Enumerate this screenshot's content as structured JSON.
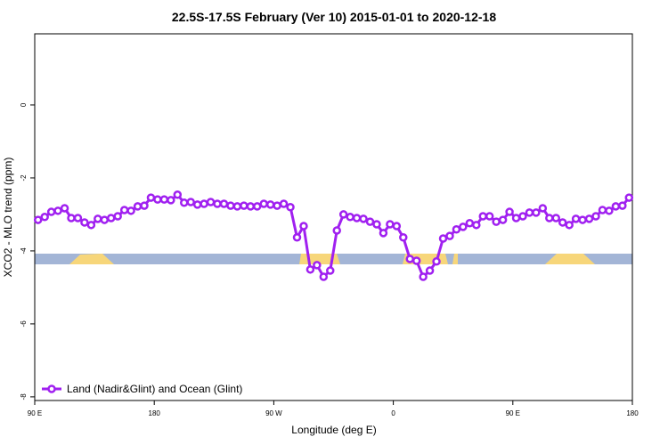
{
  "chart_data": {
    "type": "line",
    "title": "22.5S-17.5S February (Ver 10)   2015-01-01 to 2020-12-18",
    "x_label": "Longitude (deg E)",
    "y_label": "XCO2 - MLO trend (ppm)",
    "xlim": [
      90,
      540
    ],
    "ylim": [
      -8.1,
      1.95
    ],
    "xticks": [
      {
        "value": 90,
        "label": "90 E"
      },
      {
        "value": 180,
        "label": "180"
      },
      {
        "value": 270,
        "label": "90 W"
      },
      {
        "value": 360,
        "label": "0"
      },
      {
        "value": 450,
        "label": "90 E"
      },
      {
        "value": 540,
        "label": "180"
      }
    ],
    "yticks": [
      0,
      -2,
      -4,
      -6,
      -8
    ],
    "x": [
      92.5,
      97.5,
      102.5,
      107.5,
      112.5,
      117.5,
      122.5,
      127.5,
      132.5,
      137.5,
      142.5,
      147.5,
      152.5,
      157.5,
      162.5,
      167.5,
      172.5,
      177.5,
      182.5,
      187.5,
      192.5,
      197.5,
      202.5,
      207.5,
      212.5,
      217.5,
      222.5,
      227.5,
      232.5,
      237.5,
      242.5,
      247.5,
      252.5,
      257.5,
      262.5,
      267.5,
      272.5,
      277.5,
      282.5,
      287.5,
      292.5,
      297.5,
      302.5,
      307.5,
      312.5,
      317.5,
      322.5,
      327.5,
      332.5,
      337.5,
      342.5,
      347.5,
      352.5,
      357.5,
      362.5,
      367.5,
      372.5,
      377.5,
      382.5,
      387.5,
      392.5,
      397.5,
      402.5,
      407.5,
      412.5,
      417.5,
      422.5,
      427.5,
      432.5,
      437.5,
      442.5,
      447.5,
      452.5,
      457.5,
      462.5,
      467.5,
      472.5,
      477.5,
      482.5,
      487.5,
      492.5,
      497.5,
      502.5,
      507.5,
      512.5,
      517.5,
      522.5,
      527.5,
      532.5,
      537.5
    ],
    "series": [
      {
        "name": "Land (Nadir&Glint) and Ocean (Glint)",
        "color": "#a020f0",
        "values": [
          -3.15,
          -3.07,
          -2.93,
          -2.9,
          -2.83,
          -3.1,
          -3.1,
          -3.22,
          -3.29,
          -3.12,
          -3.15,
          -3.1,
          -3.05,
          -2.88,
          -2.9,
          -2.78,
          -2.76,
          -2.54,
          -2.59,
          -2.59,
          -2.61,
          -2.46,
          -2.68,
          -2.66,
          -2.73,
          -2.71,
          -2.66,
          -2.71,
          -2.71,
          -2.76,
          -2.78,
          -2.76,
          -2.78,
          -2.78,
          -2.71,
          -2.73,
          -2.76,
          -2.71,
          -2.8,
          -3.63,
          -3.32,
          -4.51,
          -4.39,
          -4.71,
          -4.54,
          -3.44,
          -3.0,
          -3.07,
          -3.1,
          -3.12,
          -3.2,
          -3.27,
          -3.51,
          -3.27,
          -3.32,
          -3.63,
          -4.22,
          -4.27,
          -4.71,
          -4.54,
          -4.29,
          -3.66,
          -3.59,
          -3.41,
          -3.34,
          -3.24,
          -3.29,
          -3.05,
          -3.05,
          -3.2,
          -3.15,
          -2.93,
          -3.1,
          -3.05,
          -2.95,
          -2.95,
          -2.83,
          -3.1,
          -3.1,
          -3.22,
          -3.29,
          -3.12,
          -3.15,
          -3.12,
          -3.05,
          -2.88,
          -2.9,
          -2.78,
          -2.76,
          -2.54
        ]
      }
    ],
    "legend": "bottom-left"
  }
}
